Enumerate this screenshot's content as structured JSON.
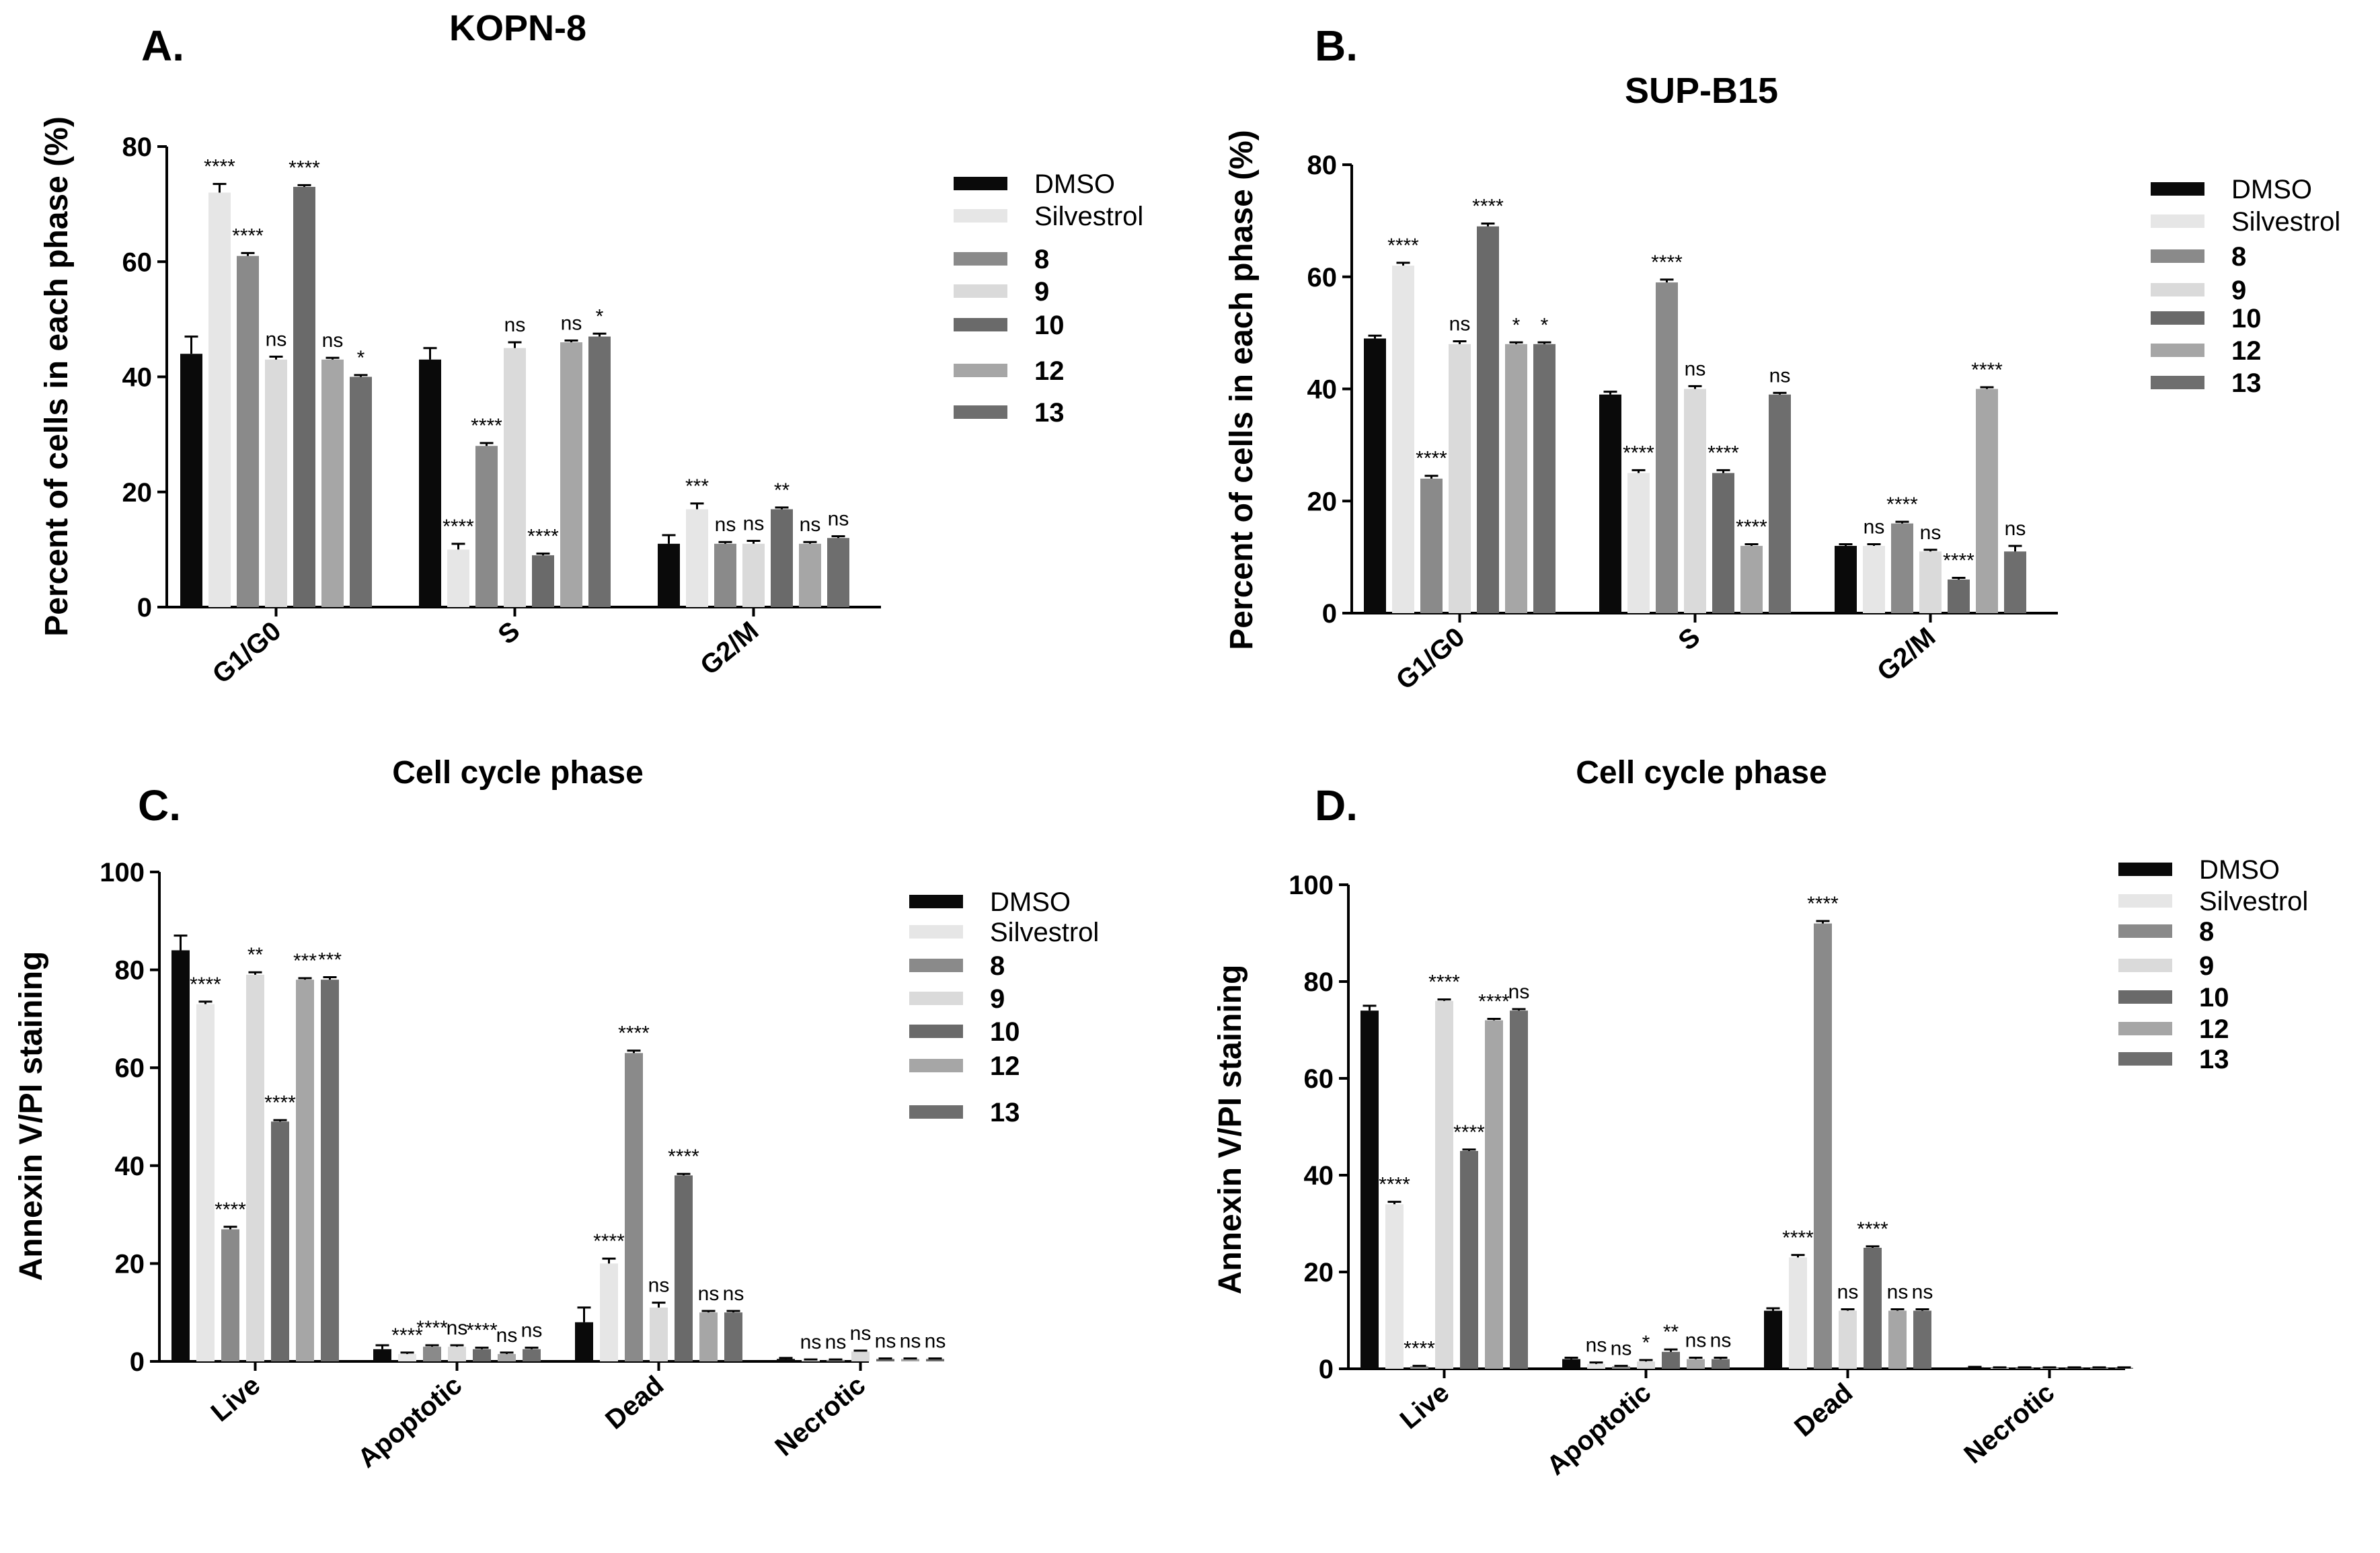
{
  "colors": [
    "#0a0a0a",
    "#e6e6e6",
    "#8a8a8a",
    "#dadada",
    "#6a6a6a",
    "#a6a6a6",
    "#6e6e6e"
  ],
  "chart_data": [
    {
      "id": "A",
      "panel": "A.",
      "type": "bar",
      "title": "KOPN-8",
      "xlabel": "Cell cycle phase",
      "ylabel": "Percent of cells in each phase (%)",
      "ylim": [
        0,
        80
      ],
      "yticks": [
        0,
        20,
        40,
        60,
        80
      ],
      "categories": [
        "G1/G0",
        "S",
        "G2/M"
      ],
      "series": [
        {
          "name": "DMSO",
          "values": [
            44,
            43,
            11
          ],
          "errors": [
            3,
            2,
            1.5
          ],
          "sig": [
            "",
            "",
            ""
          ]
        },
        {
          "name": "Silvestrol",
          "values": [
            72,
            10,
            17
          ],
          "errors": [
            1.5,
            1,
            1
          ],
          "sig": [
            "****",
            "****",
            "***"
          ]
        },
        {
          "name": "8",
          "values": [
            61,
            28,
            11
          ],
          "errors": [
            0.5,
            0.5,
            0.3
          ],
          "sig": [
            "****",
            "****",
            "ns"
          ]
        },
        {
          "name": "9",
          "values": [
            43,
            45,
            11
          ],
          "errors": [
            0.5,
            1,
            0.5
          ],
          "sig": [
            "ns",
            "ns",
            "ns"
          ]
        },
        {
          "name": "10",
          "values": [
            73,
            9,
            17
          ],
          "errors": [
            0.3,
            0.3,
            0.3
          ],
          "sig": [
            "****",
            "****",
            "**"
          ]
        },
        {
          "name": "12",
          "values": [
            43,
            46,
            11
          ],
          "errors": [
            0.3,
            0.3,
            0.3
          ],
          "sig": [
            "ns",
            "ns",
            "ns"
          ]
        },
        {
          "name": "13",
          "values": [
            40,
            47,
            12
          ],
          "errors": [
            0.3,
            0.5,
            0.3
          ],
          "sig": [
            "*",
            "*",
            "ns"
          ]
        }
      ]
    },
    {
      "id": "B",
      "panel": "B.",
      "type": "bar",
      "title": "SUP-B15",
      "xlabel": "Cell cycle phase",
      "ylabel": "Percent of cells in each phase (%)",
      "ylim": [
        0,
        80
      ],
      "yticks": [
        0,
        20,
        40,
        60,
        80
      ],
      "categories": [
        "G1/G0",
        "S",
        "G2/M"
      ],
      "series": [
        {
          "name": "DMSO",
          "values": [
            49,
            39,
            12
          ],
          "errors": [
            0.5,
            0.5,
            0.3
          ],
          "sig": [
            "",
            "",
            ""
          ]
        },
        {
          "name": "Silvestrol",
          "values": [
            62,
            25,
            12
          ],
          "errors": [
            0.5,
            0.5,
            0.3
          ],
          "sig": [
            "****",
            "****",
            "ns"
          ]
        },
        {
          "name": "8",
          "values": [
            24,
            59,
            16
          ],
          "errors": [
            0.5,
            0.5,
            0.3
          ],
          "sig": [
            "****",
            "****",
            "****"
          ]
        },
        {
          "name": "9",
          "values": [
            48,
            40,
            11
          ],
          "errors": [
            0.5,
            0.5,
            0.3
          ],
          "sig": [
            "ns",
            "ns",
            "ns"
          ]
        },
        {
          "name": "10",
          "values": [
            69,
            25,
            6
          ],
          "errors": [
            0.5,
            0.5,
            0.3
          ],
          "sig": [
            "****",
            "****",
            "****"
          ]
        },
        {
          "name": "12",
          "values": [
            48,
            12,
            40
          ],
          "errors": [
            0.3,
            0.3,
            0.3
          ],
          "sig": [
            "*",
            "****",
            "****"
          ]
        },
        {
          "name": "13",
          "values": [
            48,
            39,
            11
          ],
          "errors": [
            0.3,
            0.3,
            1
          ],
          "sig": [
            "*",
            "ns",
            "ns"
          ]
        }
      ]
    },
    {
      "id": "C",
      "panel": "C.",
      "type": "bar",
      "title": "",
      "xlabel": "",
      "ylabel": "Annexin V/PI staining",
      "ylim": [
        0,
        100
      ],
      "yticks": [
        0,
        20,
        40,
        60,
        80,
        100
      ],
      "categories": [
        "Live",
        "Apoptotic",
        "Dead",
        "Necrotic"
      ],
      "series": [
        {
          "name": "DMSO",
          "values": [
            84,
            2.5,
            8,
            0.5
          ],
          "errors": [
            3,
            0.8,
            3,
            0.2
          ],
          "sig": [
            "",
            "",
            "",
            ""
          ]
        },
        {
          "name": "Silvestrol",
          "values": [
            73,
            1.5,
            20,
            0.3
          ],
          "errors": [
            0.5,
            0.3,
            1,
            0.1
          ],
          "sig": [
            "****",
            "****",
            "****",
            "ns"
          ]
        },
        {
          "name": "8",
          "values": [
            27,
            3,
            63,
            0.3
          ],
          "errors": [
            0.5,
            0.3,
            0.5,
            0.1
          ],
          "sig": [
            "****",
            "****",
            "****",
            "ns"
          ]
        },
        {
          "name": "9",
          "values": [
            79,
            3,
            11,
            2
          ],
          "errors": [
            0.5,
            0.3,
            1,
            0.2
          ],
          "sig": [
            "**",
            "ns",
            "ns",
            "ns"
          ]
        },
        {
          "name": "10",
          "values": [
            49,
            2.5,
            38,
            0.5
          ],
          "errors": [
            0.3,
            0.3,
            0.3,
            0.1
          ],
          "sig": [
            "****",
            "****",
            "****",
            "ns"
          ]
        },
        {
          "name": "12",
          "values": [
            78,
            1.5,
            10,
            0.5
          ],
          "errors": [
            0.3,
            0.3,
            0.3,
            0.1
          ],
          "sig": [
            "***",
            "ns",
            "ns",
            "ns"
          ]
        },
        {
          "name": "13",
          "values": [
            78,
            2.5,
            10,
            0.5
          ],
          "errors": [
            0.5,
            0.3,
            0.3,
            0.1
          ],
          "sig": [
            "***",
            "ns",
            "ns",
            "ns"
          ]
        }
      ]
    },
    {
      "id": "D",
      "panel": "D.",
      "type": "bar",
      "title": "",
      "xlabel": "",
      "ylabel": "Annexin V/PI staining",
      "ylim": [
        0,
        100
      ],
      "yticks": [
        0,
        20,
        40,
        60,
        80,
        100
      ],
      "categories": [
        "Live",
        "Apoptotic",
        "Dead",
        "Necrotic"
      ],
      "series": [
        {
          "name": "DMSO",
          "values": [
            74,
            2,
            12,
            0.3
          ],
          "errors": [
            1,
            0.3,
            0.5,
            0.1
          ],
          "sig": [
            "",
            "",
            "",
            ""
          ]
        },
        {
          "name": "Silvestrol",
          "values": [
            34,
            1,
            23,
            0.2
          ],
          "errors": [
            0.5,
            0.3,
            0.5,
            0.1
          ],
          "sig": [
            "****",
            "ns",
            "****",
            ""
          ]
        },
        {
          "name": "8",
          "values": [
            0.5,
            0.5,
            92,
            0.2
          ],
          "errors": [
            0.1,
            0.1,
            0.5,
            0.1
          ],
          "sig": [
            "****",
            "ns",
            "****",
            ""
          ]
        },
        {
          "name": "9",
          "values": [
            76,
            1.5,
            12,
            0.2
          ],
          "errors": [
            0.3,
            0.3,
            0.3,
            0.1
          ],
          "sig": [
            "****",
            "*",
            "ns",
            ""
          ]
        },
        {
          "name": "10",
          "values": [
            45,
            3.5,
            25,
            0.2
          ],
          "errors": [
            0.3,
            0.5,
            0.3,
            0.1
          ],
          "sig": [
            "****",
            "**",
            "****",
            ""
          ]
        },
        {
          "name": "12",
          "values": [
            72,
            2,
            12,
            0.2
          ],
          "errors": [
            0.3,
            0.3,
            0.3,
            0.1
          ],
          "sig": [
            "****",
            "ns",
            "ns",
            ""
          ]
        },
        {
          "name": "13",
          "values": [
            74,
            2,
            12,
            0.2
          ],
          "errors": [
            0.3,
            0.3,
            0.3,
            0.1
          ],
          "sig": [
            "ns",
            "ns",
            "ns",
            ""
          ]
        }
      ]
    }
  ]
}
